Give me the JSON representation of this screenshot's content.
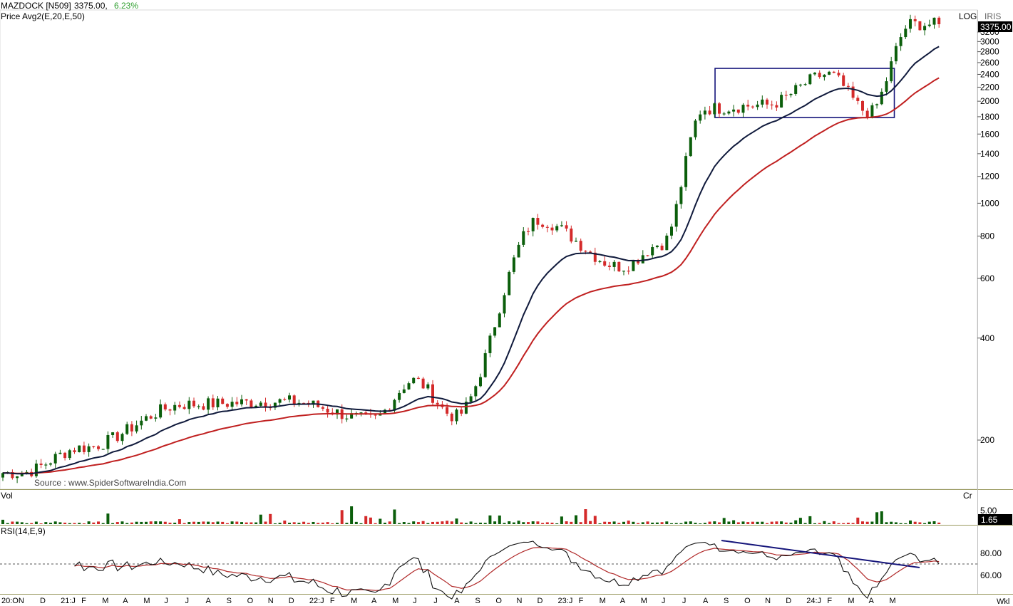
{
  "header": {
    "symbol": "MAZDOCK [N509]",
    "last": "3375.00,",
    "change": "6.23%",
    "indicator": "Price  Avg2(E,20,E,50)",
    "scale_mode": "LOG",
    "brand": "IRIS",
    "source": "Source : www.SpiderSoftwareIndia.Com",
    "period": "Wkl",
    "colors": {
      "up": "#0b5e0b",
      "down": "#d42a2a",
      "ema20": "#101a3c",
      "ema50": "#c02020",
      "change": "#2e9e2e",
      "box": "#14147a"
    }
  },
  "volume_panel": {
    "label": "Vol",
    "unit": "Cr",
    "tick": "5.00",
    "current": "1.65"
  },
  "rsi_panel": {
    "label": "RSI(14,E,9)",
    "ticks": [
      "80.00",
      "60.00"
    ]
  },
  "price_badge": "3375.00",
  "chart_data": [
    {
      "type": "candlestick",
      "title": "MAZDOCK [N509]",
      "scale": "log",
      "y_ticks": [
        200,
        400,
        600,
        800,
        1000,
        1200,
        1400,
        1600,
        1800,
        2000,
        2200,
        2400,
        2600,
        2800,
        3000,
        3200
      ],
      "y_tick_labels": [
        "200",
        "400",
        "600",
        "800",
        "1000",
        "1200",
        "1400",
        "1600",
        "1800",
        "2000",
        "2200",
        "2400",
        "2600",
        "2800",
        "3000",
        "3200"
      ],
      "x_labels": [
        "20:ON",
        "D",
        "21:J",
        "F",
        "M",
        "A",
        "M",
        "J",
        "J",
        "A",
        "S",
        "O",
        "N",
        "D",
        "22:J",
        "F",
        "M",
        "A",
        "M",
        "J",
        "J",
        "A",
        "S",
        "O",
        "N",
        "D",
        "23:J",
        "F",
        "M",
        "A",
        "M",
        "J",
        "J",
        "A",
        "S",
        "O",
        "N",
        "D",
        "24:J",
        "F",
        "M",
        "A",
        "M"
      ],
      "key_points": [
        {
          "date": "2020-10",
          "price": 160
        },
        {
          "date": "2021-01",
          "price": 190
        },
        {
          "date": "2021-06",
          "price": 255
        },
        {
          "date": "2021-11",
          "price": 260
        },
        {
          "date": "2022-03",
          "price": 230
        },
        {
          "date": "2022-05",
          "price": 300
        },
        {
          "date": "2022-07",
          "price": 235
        },
        {
          "date": "2022-11",
          "price": 890
        },
        {
          "date": "2023-03",
          "price": 650
        },
        {
          "date": "2023-05",
          "price": 760
        },
        {
          "date": "2023-07",
          "price": 1900
        },
        {
          "date": "2023-10",
          "price": 1950
        },
        {
          "date": "2024-01",
          "price": 2400
        },
        {
          "date": "2024-03",
          "price": 1850
        },
        {
          "date": "2024-05",
          "price": 3375
        }
      ],
      "series": [
        {
          "name": "Avg2(E,20)",
          "role": "ema20"
        },
        {
          "name": "Avg2(E,50)",
          "role": "ema50"
        }
      ],
      "consolidation_box": {
        "price_low": 1790,
        "price_high": 2500,
        "from": "2023-08",
        "to": "2024-04"
      },
      "last_price": 3375.0,
      "change_pct": 6.23
    },
    {
      "type": "bar",
      "title": "Vol",
      "unit": "Cr",
      "y_ticks": [
        5.0
      ],
      "last_value": 1.65
    },
    {
      "type": "line",
      "title": "RSI(14,E,9)",
      "y_ticks": [
        60,
        80
      ],
      "reference_line": 70,
      "trendline": {
        "from_value": 86,
        "to_value": 68,
        "from": "2023-07",
        "to": "2024-04"
      }
    }
  ]
}
